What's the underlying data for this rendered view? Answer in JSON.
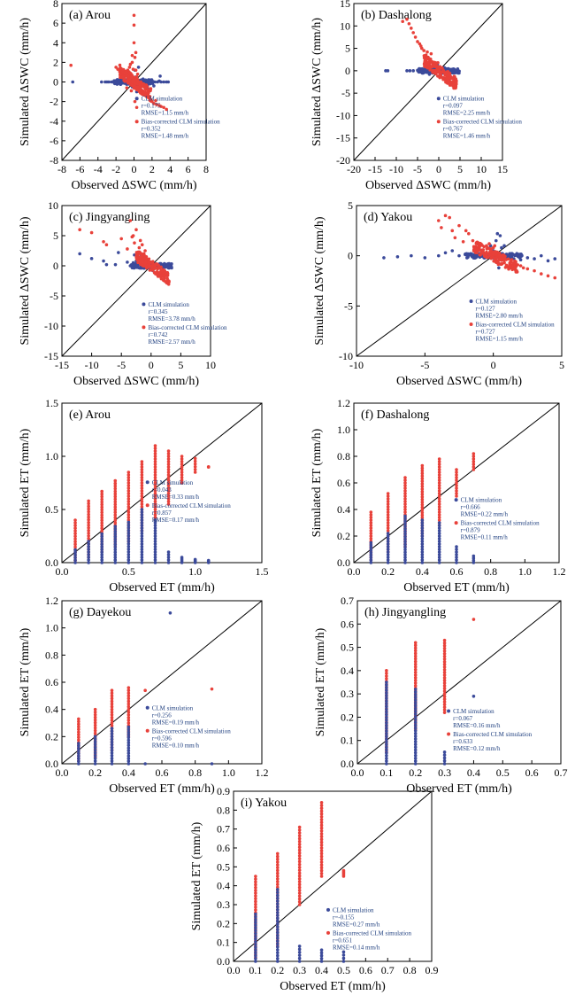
{
  "colors": {
    "clm": "#3b4a9a",
    "bias_corrected": "#e8413a"
  },
  "chart_data": [
    {
      "type": "scatter",
      "title": "(a) Arou",
      "xlabel": "Observed ΔSWC (mm/h)",
      "ylabel": "Simulated ΔSWC (mm/h)",
      "xlim": [
        -8,
        8
      ],
      "ylim": [
        -8,
        8
      ],
      "xticks": [
        -8,
        -6,
        -4,
        -2,
        0,
        2,
        4,
        6,
        8
      ],
      "yticks": [
        -8,
        -6,
        -4,
        -2,
        0,
        2,
        4,
        6,
        8
      ],
      "legend": [
        {
          "name": "CLM simulation",
          "r": "r=0.175",
          "rmse": "RMSE=1.15 mm/h"
        },
        {
          "name": "Bias-corrected CLM simulation",
          "r": "r=0.352",
          "rmse": "RMSE=1.48 mm/h"
        }
      ],
      "series": [
        {
          "name": "CLM simulation",
          "x": [
            -6.8,
            -3.6,
            -3.2,
            -3.0,
            -2.8,
            -2.5,
            -2.2,
            -2.0,
            -1.8,
            -1.5,
            -1.2,
            -1.0,
            -0.8,
            -0.5,
            -0.3,
            0.0,
            0.2,
            0.4,
            0.6,
            0.8,
            1.0,
            1.3,
            1.6,
            1.8,
            2.0,
            2.3,
            2.6,
            2.8,
            3.0,
            3.3,
            3.6,
            3.8,
            0.5,
            0.1,
            -0.2,
            0.9,
            1.5,
            2.2,
            0.3,
            -0.6,
            2.9
          ],
          "y": [
            0.0,
            0.0,
            0.0,
            0.0,
            0.0,
            0.0,
            0.1,
            0.0,
            0.0,
            -0.1,
            0.0,
            0.1,
            0.0,
            0.0,
            0.1,
            0.0,
            0.5,
            0.2,
            -0.3,
            0.2,
            0.3,
            0.1,
            0.0,
            0.0,
            0.1,
            0.0,
            0.0,
            0.1,
            0.0,
            0.0,
            0.0,
            0.0,
            1.5,
            1.2,
            -0.5,
            -0.9,
            -0.6,
            -0.4,
            -1.0,
            0.4,
            0.6
          ]
        },
        {
          "name": "Bias-corrected CLM simulation",
          "x": [
            -7.0,
            -2.0,
            -1.8,
            -1.5,
            -1.3,
            -1.0,
            -0.9,
            -0.7,
            -0.5,
            -0.4,
            -0.3,
            -0.2,
            -0.1,
            0.0,
            0.1,
            0.2,
            0.3,
            0.4,
            0.5,
            0.6,
            0.8,
            1.0,
            1.2,
            1.4,
            1.6,
            1.8,
            2.0,
            2.2,
            2.5,
            2.8,
            3.0,
            3.3,
            3.6,
            0.0,
            0.0,
            -0.2,
            0.1,
            -0.5,
            0.3,
            -1.2,
            0.6,
            -0.8,
            0.2,
            1.1,
            -0.3,
            0.7,
            1.5,
            2.4,
            -0.6,
            0.4
          ],
          "y": [
            1.7,
            1.5,
            1.3,
            1.2,
            1.0,
            1.1,
            0.8,
            1.2,
            1.5,
            1.8,
            0.6,
            2.0,
            1.3,
            6.8,
            2.5,
            3.0,
            0.5,
            0.8,
            -0.3,
            -0.5,
            -0.8,
            -1.0,
            -1.1,
            -1.4,
            -1.6,
            -1.8,
            -2.0,
            -2.2,
            -2.3,
            -2.4,
            -2.5,
            -2.6,
            -2.8,
            5.8,
            4.0,
            2.7,
            -2.0,
            0.4,
            -2.6,
            0.7,
            0.0,
            -0.6,
            1.2,
            -1.3,
            -0.9,
            -0.2,
            -0.5,
            -1.9,
            0.9,
            0.2
          ]
        }
      ]
    },
    {
      "type": "scatter",
      "title": "(b) Dashalong",
      "xlabel": "Observed ΔSWC (mm/h)",
      "ylabel": "Simulated ΔSWC (mm/h)",
      "xlim": [
        -20,
        15
      ],
      "ylim": [
        -20,
        15
      ],
      "xticks": [
        -20,
        -15,
        -10,
        -5,
        0,
        5,
        10,
        15
      ],
      "yticks": [
        -20,
        -15,
        -10,
        -5,
        0,
        5,
        10,
        15
      ],
      "legend": [
        {
          "name": "CLM simulation",
          "r": "r=0.097",
          "rmse": "RMSE=2.25 mm/h"
        },
        {
          "name": "Bias-corrected CLM simulation",
          "r": "r=0.767",
          "rmse": "RMSE=1.46 mm/h"
        }
      ],
      "series": [
        {
          "name": "CLM simulation",
          "x": [
            -12.5,
            -12.0,
            -7.5,
            -6.8,
            -6.0,
            -5.0,
            -4.0,
            -3.5,
            -3.0,
            -2.5,
            -2.0,
            -1.5,
            -1.0,
            -0.5,
            0.0,
            0.5,
            1.0,
            1.5,
            2.0,
            -1.2,
            -0.3,
            0.8,
            -2.2,
            1.3,
            0.2
          ],
          "y": [
            0.0,
            0.0,
            0.0,
            0.0,
            0.0,
            0.1,
            0.0,
            0.0,
            0.0,
            0.1,
            0.0,
            0.2,
            0.0,
            0.1,
            0.0,
            0.0,
            0.1,
            0.0,
            0.0,
            1.0,
            1.5,
            -0.5,
            -0.8,
            0.7,
            -1.2
          ]
        },
        {
          "name": "Bias-corrected CLM simulation",
          "x": [
            -8.5,
            -7.5,
            -7.0,
            -6.5,
            -6.0,
            -5.5,
            -5.0,
            -4.5,
            -4.0,
            -3.5,
            -3.0,
            -2.5,
            -2.0,
            -1.5,
            -1.0,
            -0.5,
            0.0,
            0.5,
            1.0,
            1.5,
            -3.2,
            -2.2,
            -1.8,
            -0.8,
            -0.2,
            0.4,
            -2.7,
            -1.2,
            0.8,
            -4.2
          ],
          "y": [
            11.0,
            11.5,
            10.5,
            9.5,
            8.5,
            7.5,
            6.5,
            6.0,
            5.0,
            4.5,
            3.5,
            3.0,
            2.5,
            2.0,
            1.5,
            1.0,
            0.5,
            0.0,
            -0.5,
            -1.0,
            2.8,
            1.2,
            3.8,
            0.3,
            1.8,
            -0.8,
            4.2,
            0.8,
            0.2,
            5.5
          ]
        }
      ]
    },
    {
      "type": "scatter",
      "title": "(c) Jingyangling",
      "xlabel": "Observed ΔSWC (mm/h)",
      "ylabel": "Simulated ΔSWC (mm/h)",
      "xlim": [
        -15,
        10
      ],
      "ylim": [
        -15,
        10
      ],
      "xticks": [
        -15,
        -10,
        -5,
        0,
        5,
        10
      ],
      "yticks": [
        -15,
        -10,
        -5,
        0,
        5,
        10
      ],
      "legend": [
        {
          "name": "CLM simulation",
          "r": "r=0.345",
          "rmse": "RMSE=3.78 mm/h"
        },
        {
          "name": "Bias-corrected CLM simulation",
          "r": "r=0.742",
          "rmse": "RMSE=2.57 mm/h"
        }
      ],
      "series": [
        {
          "name": "CLM simulation",
          "x": [
            -12.0,
            -10.0,
            -8.0,
            -7.5,
            -6.0,
            -5.5,
            -4.0,
            -3.5,
            -3.0,
            -2.5,
            -2.0,
            -1.5,
            -1.0,
            -0.5,
            0.0,
            0.5,
            1.0,
            -1.8,
            -0.8,
            0.3,
            -2.8,
            -1.2
          ],
          "y": [
            2.0,
            1.2,
            0.8,
            0.2,
            0.2,
            2.2,
            0.6,
            0.0,
            0.5,
            0.8,
            1.0,
            0.0,
            0.3,
            -0.2,
            0.0,
            -0.5,
            -0.3,
            1.5,
            0.6,
            -0.8,
            1.8,
            -0.4
          ]
        },
        {
          "name": "Bias-corrected CLM simulation",
          "x": [
            -12.0,
            -10.0,
            -8.0,
            -7.5,
            -5.0,
            -4.0,
            -3.5,
            -3.0,
            -2.5,
            -2.0,
            -1.8,
            -1.5,
            -1.2,
            -1.0,
            -0.8,
            -0.5,
            0.0,
            0.5,
            1.0,
            -3.2,
            -2.8,
            -2.2,
            -1.4,
            -0.6,
            0.2
          ],
          "y": [
            6.0,
            5.5,
            4.0,
            3.5,
            4.5,
            2.8,
            7.5,
            5.0,
            6.0,
            3.0,
            4.2,
            3.5,
            2.0,
            2.5,
            1.5,
            1.0,
            0.5,
            -0.5,
            -1.0,
            4.8,
            3.8,
            2.2,
            1.8,
            0.8,
            -0.2
          ]
        }
      ]
    },
    {
      "type": "scatter",
      "title": "(d) Yakou",
      "xlabel": "Observed ΔSWC (mm/h)",
      "ylabel": "Simulated ΔSWC (mm/h)",
      "xlim": [
        -10,
        5
      ],
      "ylim": [
        -10,
        5
      ],
      "xticks": [
        -10,
        -5,
        0,
        5
      ],
      "yticks": [
        -10,
        -5,
        0,
        5
      ],
      "legend": [
        {
          "name": "CLM simulation",
          "r": "r=0.127",
          "rmse": "RMSE=2.80 mm/h"
        },
        {
          "name": "Bias-corrected CLM simulation",
          "r": "r=0.727",
          "rmse": "RMSE=1.15 mm/h"
        }
      ],
      "series": [
        {
          "name": "CLM simulation",
          "x": [
            -8.0,
            -7.0,
            -6.0,
            -5.0,
            -4.0,
            -3.5,
            -3.0,
            -2.5,
            -2.0,
            -1.5,
            -1.0,
            -0.5,
            0.0,
            0.3,
            0.5,
            0.8,
            1.0,
            1.5,
            2.0,
            2.5,
            3.0,
            3.5,
            4.0,
            4.5,
            0.2,
            0.6,
            -0.2,
            0.4
          ],
          "y": [
            -0.2,
            -0.1,
            0.0,
            -0.2,
            0.0,
            0.3,
            0.5,
            0.0,
            0.1,
            0.0,
            0.2,
            0.0,
            0.5,
            2.2,
            2.0,
            1.0,
            -0.2,
            -0.3,
            -0.4,
            -0.2,
            -0.3,
            0.0,
            -0.5,
            -0.3,
            1.5,
            0.8,
            1.0,
            -1.2
          ]
        },
        {
          "name": "Bias-corrected CLM simulation",
          "x": [
            -4.0,
            -3.5,
            -3.2,
            -3.0,
            -2.5,
            -2.0,
            -1.5,
            -1.0,
            -0.5,
            0.0,
            0.3,
            0.6,
            1.0,
            1.3,
            1.6,
            2.0,
            2.5,
            3.0,
            3.5,
            4.0,
            4.5,
            -2.8,
            -1.8,
            -1.2,
            -0.3,
            0.8,
            2.2,
            0.1,
            -3.8,
            -2.2
          ],
          "y": [
            3.5,
            4.0,
            3.8,
            2.5,
            3.0,
            2.5,
            1.5,
            1.2,
            1.0,
            0.8,
            0.3,
            0.0,
            -0.2,
            -0.5,
            -0.8,
            -1.0,
            -1.3,
            -1.5,
            -1.8,
            -2.0,
            -2.2,
            1.8,
            2.2,
            0.8,
            1.2,
            -0.4,
            -1.2,
            1.0,
            2.8,
            1.4
          ]
        }
      ]
    },
    {
      "type": "scatter",
      "title": "(e) Arou",
      "xlabel": "Observed ET (mm/h)",
      "ylabel": "Simulated ET (mm/h)",
      "xlim": [
        0,
        1.5
      ],
      "ylim": [
        0,
        1.5
      ],
      "xticks": [
        0.0,
        0.5,
        1.0,
        1.5
      ],
      "yticks": [
        0.0,
        0.5,
        1.0,
        1.5
      ],
      "legend": [
        {
          "name": "CLM simulation",
          "r": "r=0.043",
          "rmse": "RMSE=0.33 mm/h"
        },
        {
          "name": "Bias-corrected CLM simulation",
          "r": "r=0.857",
          "rmse": "RMSE=0.17 mm/h"
        }
      ],
      "columns": {
        "x": [
          0.1,
          0.2,
          0.3,
          0.4,
          0.5,
          0.6,
          0.7,
          0.8,
          0.9,
          1.0,
          1.1
        ],
        "clm_max": [
          0.12,
          0.2,
          0.27,
          0.34,
          0.38,
          0.5,
          0.4,
          0.1,
          0.05,
          0.03,
          0.02
        ],
        "bias_min": [
          0.02,
          0.05,
          0.1,
          0.15,
          0.2,
          0.3,
          0.4,
          0.55,
          0.75,
          0.85,
          0.9
        ],
        "bias_max": [
          0.4,
          0.58,
          0.67,
          0.77,
          0.85,
          0.95,
          1.1,
          1.05,
          1.0,
          0.98,
          0.9
        ]
      }
    },
    {
      "type": "scatter",
      "title": "(f) Dashalong",
      "xlabel": "Observed ET (mm/h)",
      "ylabel": "Simulated ET (mm/h)",
      "xlim": [
        0,
        1.2
      ],
      "ylim": [
        0,
        1.2
      ],
      "xticks": [
        0.0,
        0.2,
        0.4,
        0.6,
        0.8,
        1.0,
        1.2
      ],
      "yticks": [
        0.0,
        0.2,
        0.4,
        0.6,
        0.8,
        1.0,
        1.2
      ],
      "legend": [
        {
          "name": "CLM simulation",
          "r": "r=0.666",
          "rmse": "RMSE=0.22 mm/h"
        },
        {
          "name": "Bias-corrected CLM simulation",
          "r": "r=0.879",
          "rmse": "RMSE=0.11 mm/h"
        }
      ],
      "columns": {
        "x": [
          0.1,
          0.2,
          0.3,
          0.4,
          0.5,
          0.6,
          0.7
        ],
        "clm_max": [
          0.15,
          0.22,
          0.35,
          0.32,
          0.3,
          0.12,
          0.05
        ],
        "bias_min": [
          0.02,
          0.08,
          0.12,
          0.2,
          0.28,
          0.5,
          0.7
        ],
        "bias_max": [
          0.38,
          0.52,
          0.64,
          0.73,
          0.78,
          0.7,
          0.82
        ]
      }
    },
    {
      "type": "scatter",
      "title": "(g) Dayekou",
      "xlabel": "Observed ET (mm/h)",
      "ylabel": "Simulated ET (mm/h)",
      "xlim": [
        0,
        1.2
      ],
      "ylim": [
        0,
        1.2
      ],
      "xticks": [
        0.0,
        0.2,
        0.4,
        0.6,
        0.8,
        1.0,
        1.2
      ],
      "yticks": [
        0.0,
        0.2,
        0.4,
        0.6,
        0.8,
        1.0,
        1.2
      ],
      "legend": [
        {
          "name": "CLM simulation",
          "r": "r=0.256",
          "rmse": "RMSE=0.19 mm/h"
        },
        {
          "name": "Bias-corrected CLM simulation",
          "r": "r=0.596",
          "rmse": "RMSE=0.10 mm/h"
        }
      ],
      "columns": {
        "x": [
          0.1,
          0.2,
          0.3,
          0.4
        ],
        "clm_max": [
          0.15,
          0.2,
          0.26,
          0.27
        ],
        "bias_min": [
          0.02,
          0.05,
          0.1,
          0.2
        ],
        "bias_max": [
          0.33,
          0.4,
          0.54,
          0.56
        ]
      },
      "extra_points": {
        "clm": [
          [
            0.65,
            1.11
          ],
          [
            0.5,
            0.0
          ],
          [
            0.9,
            0.0
          ]
        ],
        "bias": [
          [
            0.5,
            0.54
          ],
          [
            0.9,
            0.55
          ]
        ]
      }
    },
    {
      "type": "scatter",
      "title": "(h) Jingyangling",
      "xlabel": "Observed ET (mm/h)",
      "ylabel": "Simulated ET (mm/h)",
      "xlim": [
        0,
        0.7
      ],
      "ylim": [
        0,
        0.7
      ],
      "xticks": [
        0.0,
        0.1,
        0.2,
        0.3,
        0.4,
        0.5,
        0.6,
        0.7
      ],
      "yticks": [
        0.0,
        0.1,
        0.2,
        0.3,
        0.4,
        0.5,
        0.6,
        0.7
      ],
      "legend": [
        {
          "name": "CLM simulation",
          "r": "r=0.067",
          "rmse": "RMSE=0.16 mm/h"
        },
        {
          "name": "Bias-corrected CLM simulation",
          "r": "r=0.633",
          "rmse": "RMSE=0.12 mm/h"
        }
      ],
      "columns": {
        "x": [
          0.1,
          0.2,
          0.3
        ],
        "clm_max": [
          0.35,
          0.32,
          0.05
        ],
        "bias_min": [
          0.05,
          0.15,
          0.22
        ],
        "bias_max": [
          0.4,
          0.52,
          0.53
        ]
      },
      "extra_points": {
        "clm": [
          [
            0.4,
            0.29
          ]
        ],
        "bias": [
          [
            0.4,
            0.62
          ]
        ]
      }
    },
    {
      "type": "scatter",
      "title": "(i) Yakou",
      "xlabel": "Observed ET (mm/h)",
      "ylabel": "Simulated ET (mm/h)",
      "xlim": [
        0,
        0.9
      ],
      "ylim": [
        0,
        0.9
      ],
      "xticks": [
        0.0,
        0.1,
        0.2,
        0.3,
        0.4,
        0.5,
        0.6,
        0.7,
        0.8,
        0.9
      ],
      "yticks": [
        0.0,
        0.1,
        0.2,
        0.3,
        0.4,
        0.5,
        0.6,
        0.7,
        0.8,
        0.9
      ],
      "legend": [
        {
          "name": "CLM simulation",
          "r": "r=-0.155",
          "rmse": "RMSE=0.27 mm/h"
        },
        {
          "name": "Bias-corrected CLM simulation",
          "r": "r=0.651",
          "rmse": "RMSE=0.14 mm/h"
        }
      ],
      "columns": {
        "x": [
          0.1,
          0.2,
          0.3,
          0.4,
          0.5
        ],
        "clm_max": [
          0.25,
          0.38,
          0.08,
          0.06,
          0.05
        ],
        "bias_min": [
          0.02,
          0.08,
          0.3,
          0.45,
          0.45
        ],
        "bias_max": [
          0.45,
          0.57,
          0.71,
          0.84,
          0.48
        ]
      }
    }
  ]
}
